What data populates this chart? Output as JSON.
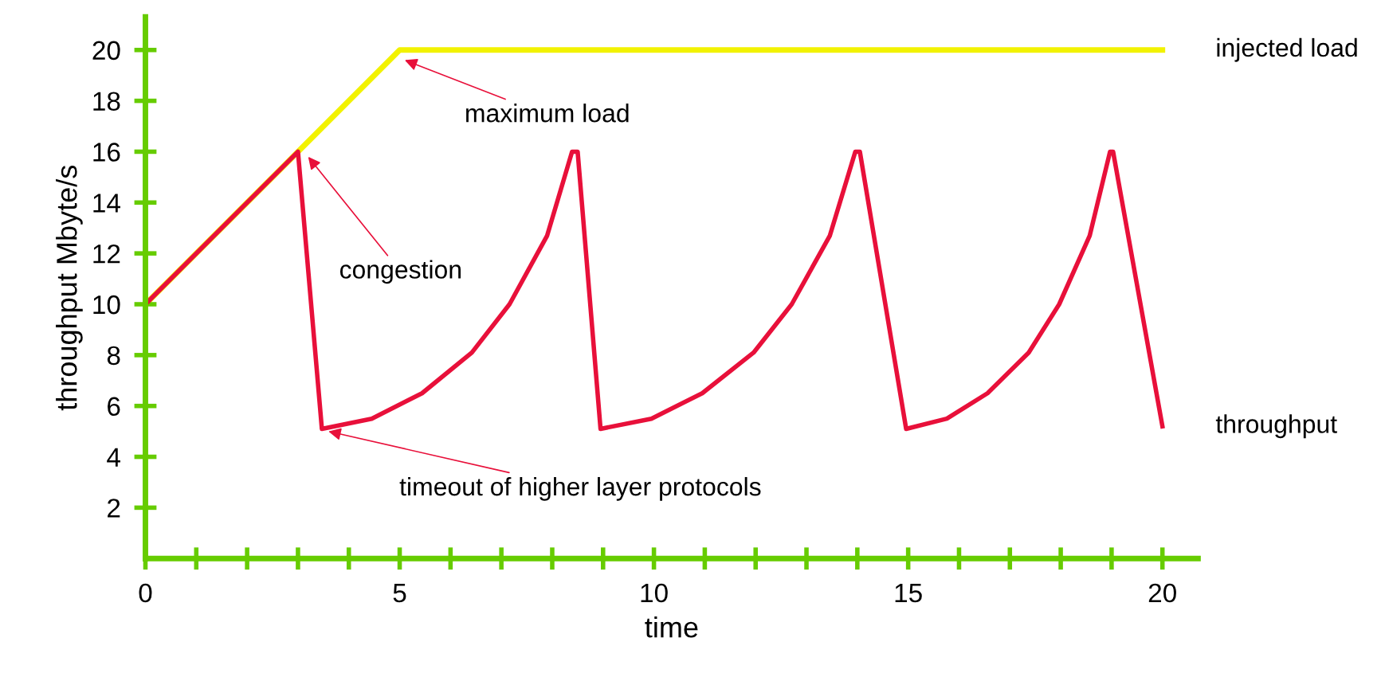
{
  "chart_data": {
    "type": "line",
    "xlabel": "time",
    "ylabel": "throughput Mbyte/s",
    "xlim": [
      0,
      20.7
    ],
    "ylim": [
      0,
      21.3
    ],
    "xticks": [
      0,
      {
        "value": 1,
        "label": null
      },
      {
        "value": 2,
        "label": null
      },
      {
        "value": 3,
        "label": null
      },
      {
        "value": 4,
        "label": null
      },
      5,
      {
        "value": 6,
        "label": null
      },
      {
        "value": 7,
        "label": null
      },
      {
        "value": 8,
        "label": null
      },
      {
        "value": 9,
        "label": null
      },
      10,
      {
        "value": 11,
        "label": null
      },
      {
        "value": 12,
        "label": null
      },
      {
        "value": 13,
        "label": null
      },
      {
        "value": 14,
        "label": null
      },
      15,
      {
        "value": 16,
        "label": null
      },
      {
        "value": 17,
        "label": null
      },
      {
        "value": 18,
        "label": null
      },
      {
        "value": 19,
        "label": null
      },
      20
    ],
    "yticks": [
      2,
      4,
      6,
      8,
      10,
      12,
      14,
      16,
      18,
      20
    ],
    "grid": false,
    "legend": false,
    "marker": "none",
    "line_style": "solid",
    "series": [
      {
        "name": "injected load",
        "color": "#f2f200",
        "x": [
          0,
          3,
          5,
          20
        ],
        "values": [
          10,
          16,
          20,
          20
        ]
      },
      {
        "name": "throughput",
        "color": "#e8103a",
        "x": [
          0,
          3,
          3.47,
          4.45,
          5.44,
          6.42,
          7.16,
          7.9,
          8.39,
          8.5,
          8.95,
          9.95,
          10.95,
          11.96,
          12.71,
          13.46,
          13.96,
          14.05,
          14.96,
          15.76,
          16.56,
          17.37,
          17.97,
          18.57,
          18.97,
          19.03,
          20
        ],
        "values": [
          10,
          16,
          5.1,
          5.5,
          6.5,
          8.1,
          10,
          12.7,
          16,
          16,
          5.1,
          5.5,
          6.5,
          8.1,
          10,
          12.7,
          16,
          16,
          5.1,
          5.5,
          6.5,
          8.1,
          10,
          12.7,
          16,
          16,
          5.2
        ]
      }
    ],
    "annotations": [
      {
        "text": "maximum load",
        "x": 5.1,
        "y": 19.6
      },
      {
        "text": "congestion",
        "x": 3.2,
        "y": 15.8
      },
      {
        "text": "timeout of higher layer protocols",
        "x": 3.6,
        "y": 5
      }
    ]
  }
}
